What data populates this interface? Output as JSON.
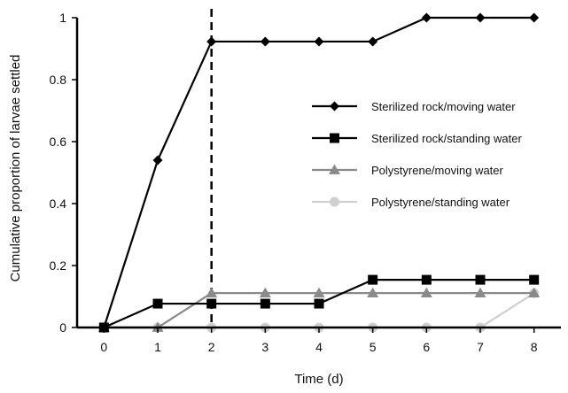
{
  "chart_data": {
    "type": "line",
    "xlabel": "Time (d)",
    "ylabel": "Cumulative proportion of larvae settled",
    "xlim": [
      -0.5,
      8.5
    ],
    "ylim": [
      0,
      1
    ],
    "x_ticks": [
      0,
      1,
      2,
      3,
      4,
      5,
      6,
      7,
      8
    ],
    "y_ticks": [
      0,
      0.2,
      0.4,
      0.6,
      0.8,
      1
    ],
    "y_tick_labels": [
      "0",
      "0.2",
      "0.4",
      "0.6",
      "0.8",
      "1"
    ],
    "grid": false,
    "legend_position": "right",
    "reference_line": {
      "x": 2,
      "style": "dashed",
      "color": "#000000"
    },
    "x": [
      0,
      1,
      2,
      3,
      4,
      5,
      6,
      7,
      8
    ],
    "series": [
      {
        "name": "Sterilized rock/moving water",
        "marker": "diamond",
        "color": "#000000",
        "values": [
          0,
          0.54,
          0.923,
          0.923,
          0.923,
          0.923,
          1,
          1,
          1
        ]
      },
      {
        "name": "Sterilized rock/standing water",
        "marker": "square",
        "color": "#000000",
        "values": [
          0,
          0.077,
          0.077,
          0.077,
          0.077,
          0.154,
          0.154,
          0.154,
          0.154
        ]
      },
      {
        "name": "Polystyrene/moving water",
        "marker": "triangle",
        "color": "#8a8a8a",
        "values": [
          0,
          0,
          0.111,
          0.111,
          0.111,
          0.111,
          0.111,
          0.111,
          0.111
        ]
      },
      {
        "name": "Polystyrene/standing water",
        "marker": "circle",
        "color": "#cfcfcf",
        "values": [
          0,
          0,
          0,
          0,
          0,
          0,
          0,
          0,
          0.111
        ]
      }
    ]
  }
}
